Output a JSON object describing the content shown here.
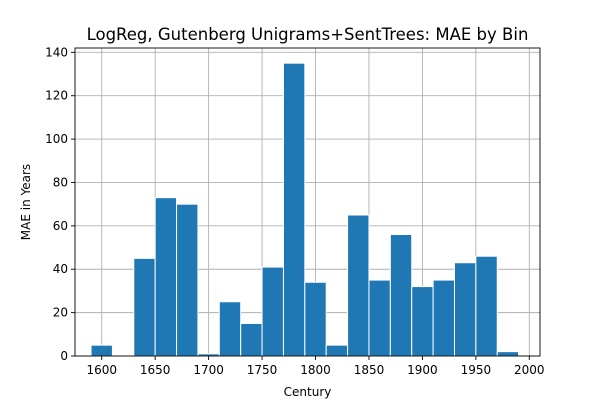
{
  "chart_data": {
    "type": "bar",
    "title": "LogReg, Gutenberg Unigrams+SentTrees: MAE by Bin",
    "xlabel": "Century",
    "ylabel": "MAE in Years",
    "xlim": [
      1575,
      2010
    ],
    "ylim": [
      0,
      142
    ],
    "xticks": [
      1600,
      1650,
      1700,
      1750,
      1800,
      1850,
      1900,
      1950,
      2000
    ],
    "yticks": [
      0,
      20,
      40,
      60,
      80,
      100,
      120,
      140
    ],
    "grid": true,
    "bar_width": 20,
    "color": "#1f77b4",
    "bars": [
      {
        "x": 1600,
        "value": 5
      },
      {
        "x": 1640,
        "value": 45
      },
      {
        "x": 1660,
        "value": 73
      },
      {
        "x": 1680,
        "value": 70
      },
      {
        "x": 1700,
        "value": 1
      },
      {
        "x": 1720,
        "value": 25
      },
      {
        "x": 1740,
        "value": 15
      },
      {
        "x": 1760,
        "value": 41
      },
      {
        "x": 1780,
        "value": 135
      },
      {
        "x": 1800,
        "value": 34
      },
      {
        "x": 1820,
        "value": 5
      },
      {
        "x": 1840,
        "value": 65
      },
      {
        "x": 1860,
        "value": 35
      },
      {
        "x": 1880,
        "value": 56
      },
      {
        "x": 1900,
        "value": 32
      },
      {
        "x": 1920,
        "value": 35
      },
      {
        "x": 1940,
        "value": 43
      },
      {
        "x": 1960,
        "value": 46
      },
      {
        "x": 1980,
        "value": 2
      }
    ]
  }
}
